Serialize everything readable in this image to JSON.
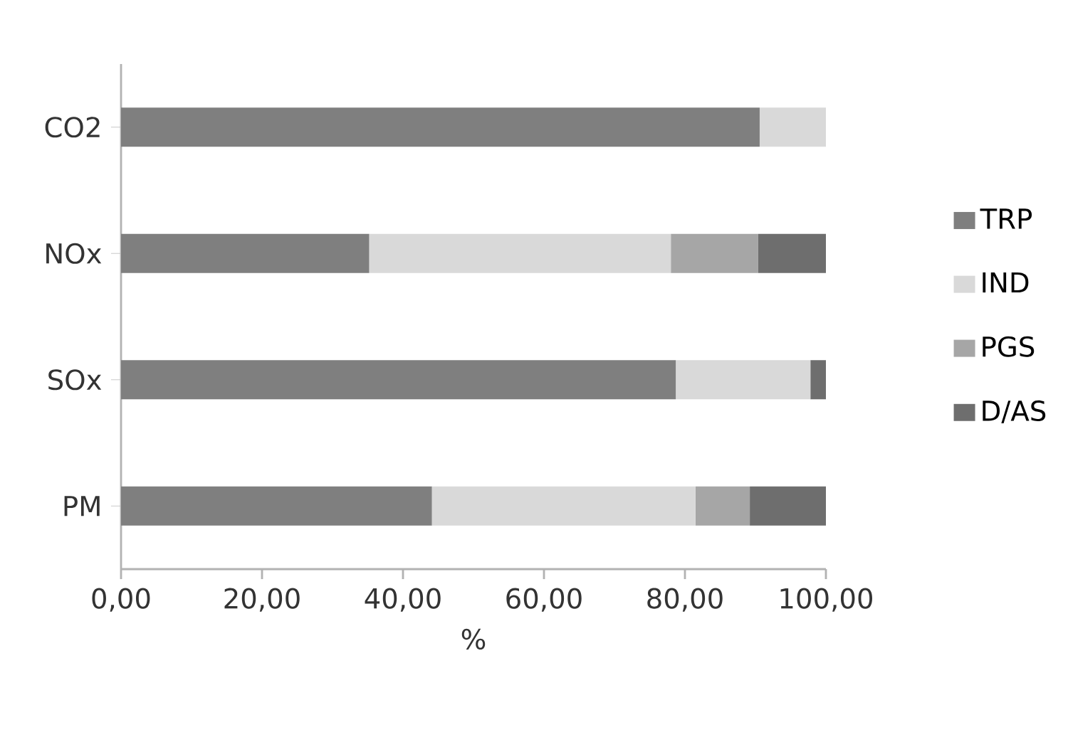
{
  "chart_data": {
    "type": "bar",
    "orientation": "horizontal",
    "stacked": true,
    "categories": [
      "CO2",
      "NOx",
      "SOx",
      "PM"
    ],
    "series": [
      {
        "name": "TRP",
        "color": "#7f7f7f",
        "values": [
          90.6,
          35.2,
          78.7,
          44.1
        ]
      },
      {
        "name": "IND",
        "color": "#d9d9d9",
        "values": [
          9.4,
          42.8,
          19.1,
          37.4
        ]
      },
      {
        "name": "PGS",
        "color": "#a6a6a6",
        "values": [
          0,
          12.4,
          0,
          7.7
        ]
      },
      {
        "name": "D/AS",
        "color": "#6e6e6e",
        "values": [
          0,
          9.6,
          2.2,
          10.8
        ]
      }
    ],
    "xlabel": "%",
    "xlim": [
      0,
      100
    ],
    "xticks": [
      {
        "value": 0,
        "label": "0,00"
      },
      {
        "value": 20,
        "label": "20,00"
      },
      {
        "value": 40,
        "label": "40,00"
      },
      {
        "value": 60,
        "label": "60,00"
      },
      {
        "value": 80,
        "label": "80,00"
      },
      {
        "value": 100,
        "label": "100,00"
      }
    ],
    "legend": "right",
    "grid": false
  }
}
